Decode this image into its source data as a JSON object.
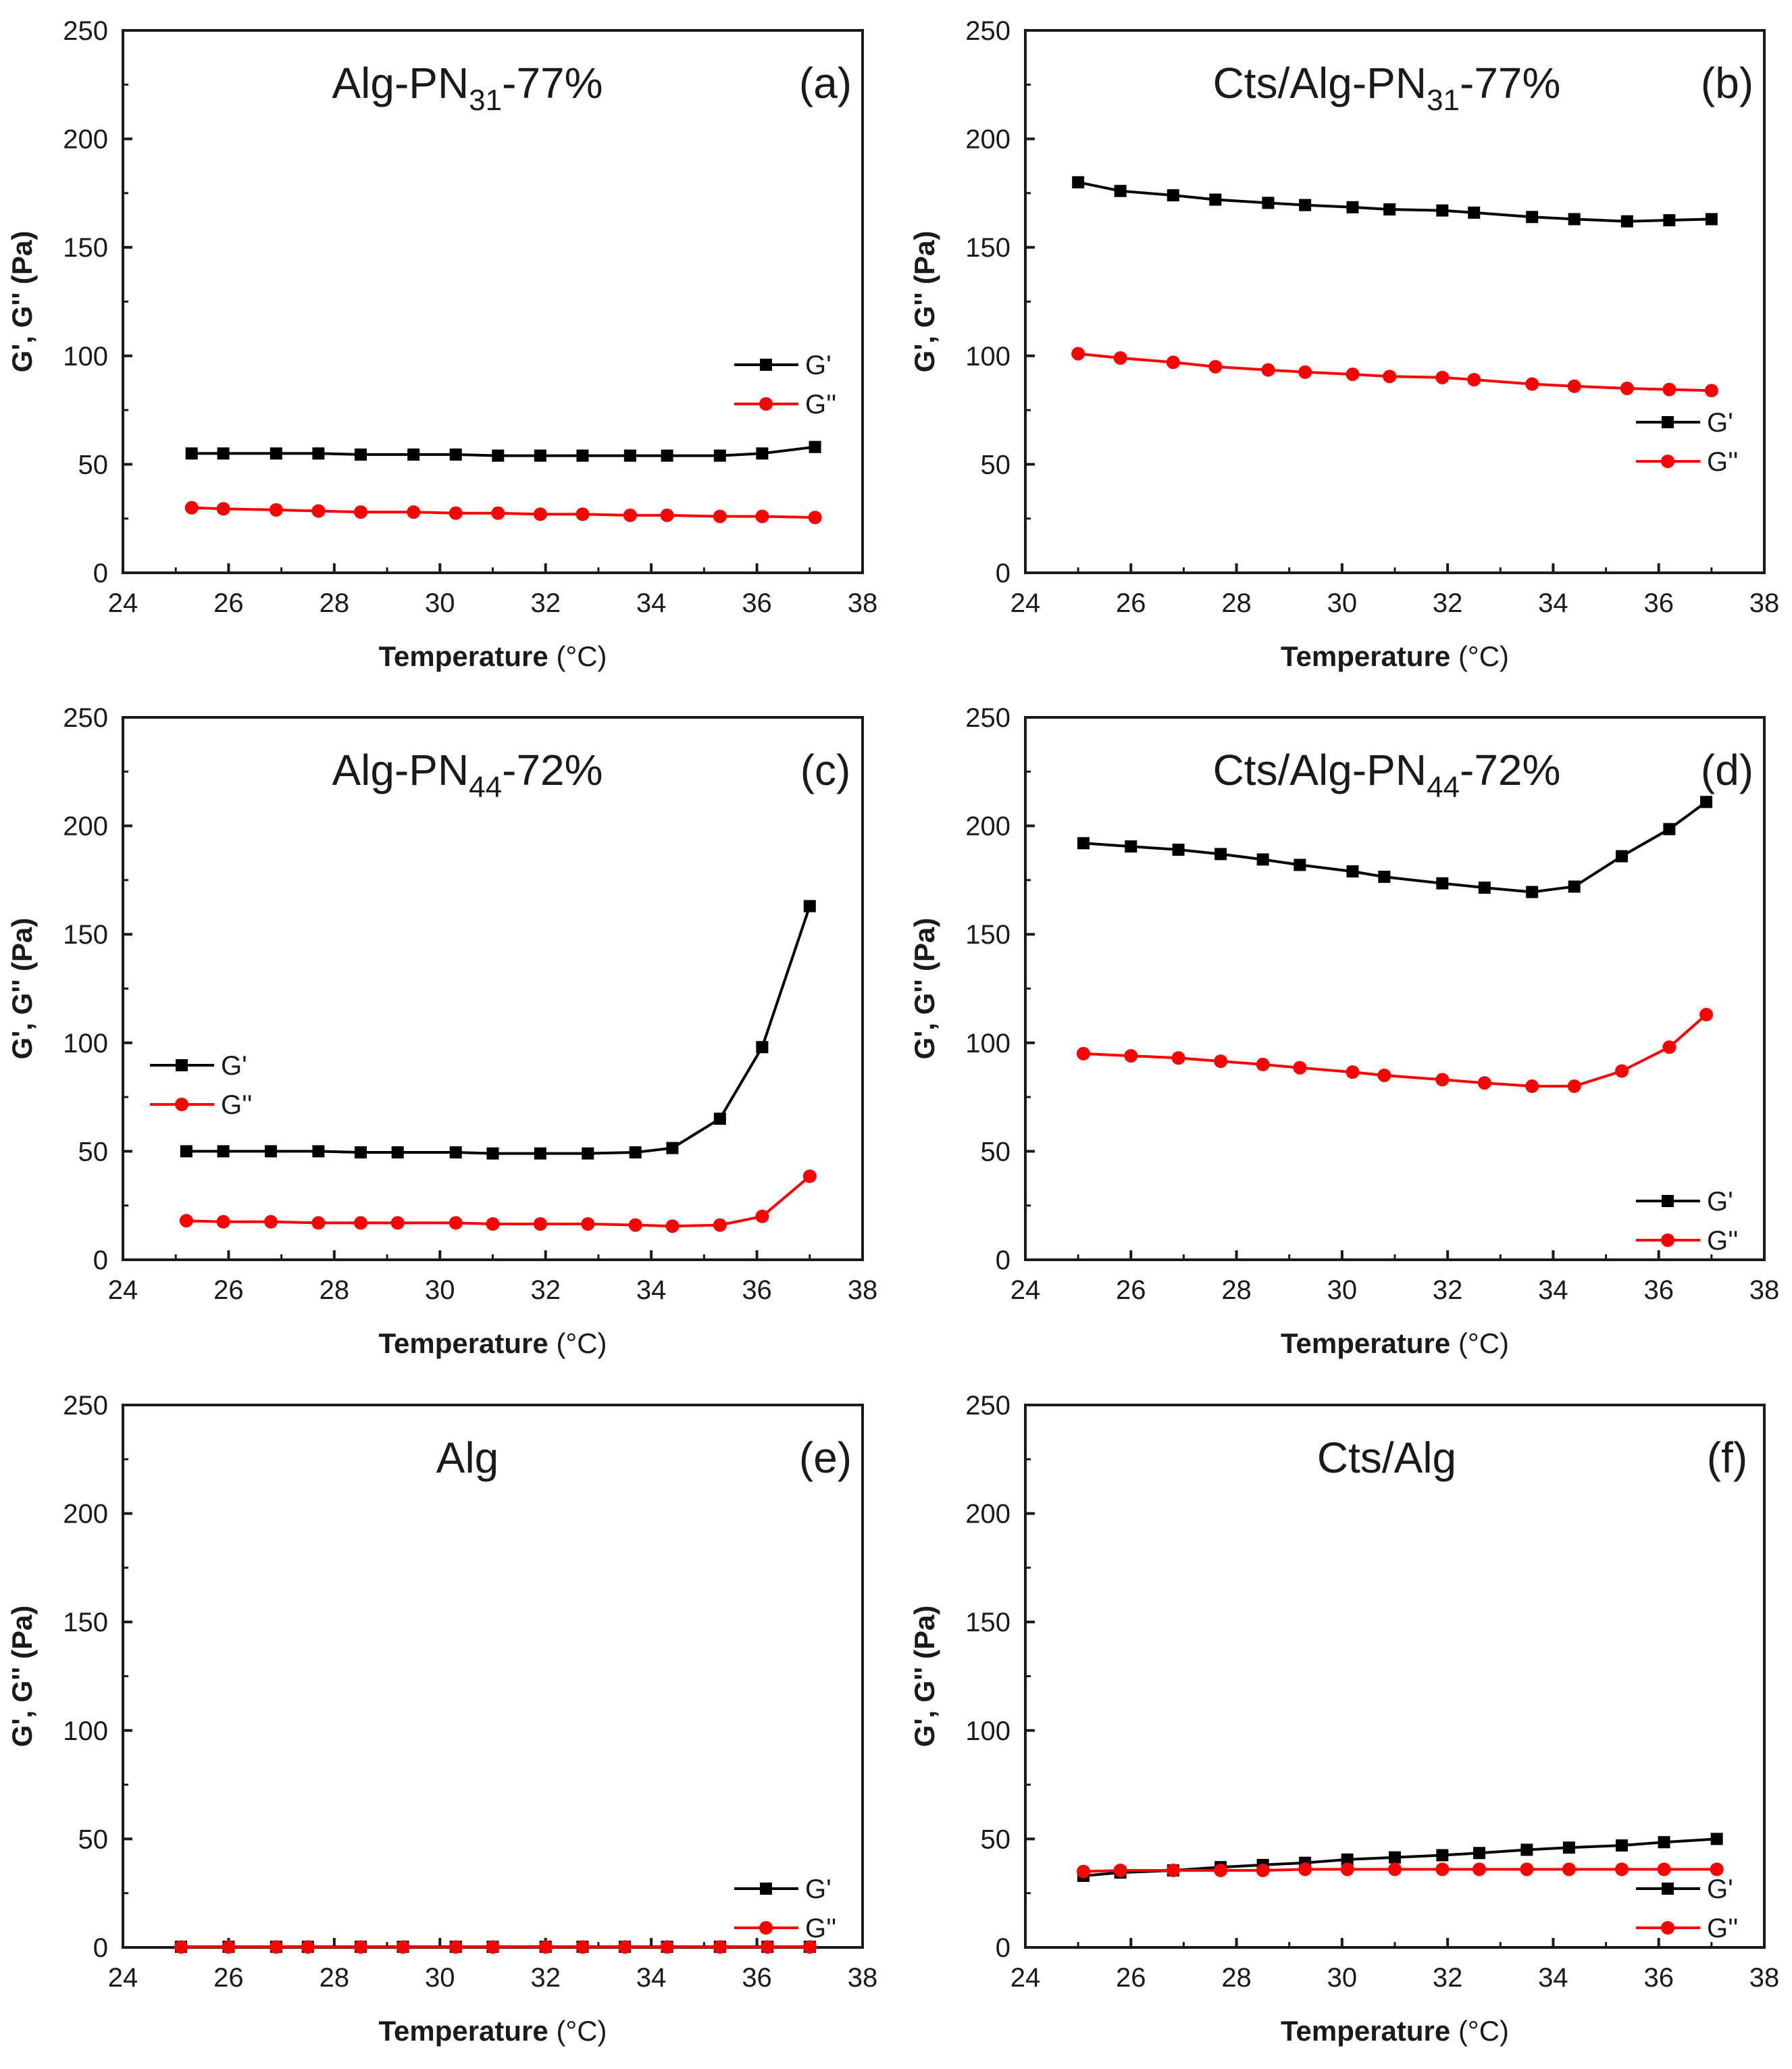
{
  "figure": {
    "background": "#ffffff",
    "axis_color": "#1a1a1a"
  },
  "colors": {
    "g_prime": "#000000",
    "g_double_prime": "#ff0000"
  },
  "chart_data": [
    {
      "id": "a",
      "type": "line",
      "letter": "(a)",
      "title_parts": [
        "Alg-PN",
        "31",
        "-77%"
      ],
      "xlabel": "Temperature",
      "xunit": "(°C)",
      "ylabel": "G', G'' (Pa)",
      "xlim": [
        24,
        38
      ],
      "ylim": [
        0,
        250
      ],
      "xticks": [
        "24",
        "26",
        "28",
        "30",
        "32",
        "34",
        "36",
        "38"
      ],
      "yticks": [
        "0",
        "50",
        "100",
        "150",
        "200",
        "250"
      ],
      "legend": "right-middle",
      "x": [
        25.3,
        25.9,
        26.9,
        27.7,
        28.5,
        29.5,
        30.3,
        31.1,
        31.9,
        32.7,
        33.6,
        34.3,
        35.3,
        36.1,
        37.1
      ],
      "series": [
        {
          "name": "G'",
          "marker": "square",
          "values": [
            55,
            55,
            55,
            55,
            54.5,
            54.5,
            54.5,
            54,
            54,
            54,
            54,
            54,
            54,
            55,
            58
          ]
        },
        {
          "name": "G''",
          "marker": "circle",
          "values": [
            30,
            29.5,
            29,
            28.5,
            28,
            28,
            27.5,
            27.5,
            27,
            27,
            26.5,
            26.5,
            26,
            26,
            25.5
          ]
        }
      ]
    },
    {
      "id": "b",
      "type": "line",
      "letter": "(b)",
      "title_parts": [
        "Cts/Alg-PN",
        "31",
        "-77%"
      ],
      "xlabel": "Temperature",
      "xunit": "(°C)",
      "ylabel": "G', G'' (Pa)",
      "xlim": [
        24,
        38
      ],
      "ylim": [
        0,
        250
      ],
      "xticks": [
        "24",
        "26",
        "28",
        "30",
        "32",
        "34",
        "36",
        "38"
      ],
      "yticks": [
        "0",
        "50",
        "100",
        "150",
        "200",
        "250"
      ],
      "legend": "right-lower",
      "x": [
        25.0,
        25.8,
        26.8,
        27.6,
        28.6,
        29.3,
        30.2,
        30.9,
        31.9,
        32.5,
        33.6,
        34.4,
        35.4,
        36.2,
        37.0
      ],
      "series": [
        {
          "name": "G'",
          "marker": "square",
          "values": [
            180,
            176,
            174,
            172,
            170.5,
            169.5,
            168.5,
            167.5,
            167,
            166,
            164,
            163,
            162,
            162.5,
            163
          ]
        },
        {
          "name": "G''",
          "marker": "circle",
          "values": [
            101,
            99,
            97,
            95,
            93.5,
            92.5,
            91.5,
            90.5,
            90,
            89,
            87,
            86,
            85,
            84.5,
            84
          ]
        }
      ]
    },
    {
      "id": "c",
      "type": "line",
      "letter": "(c)",
      "title_parts": [
        "Alg-PN",
        "44",
        "-72%"
      ],
      "xlabel": "Temperature",
      "xunit": "(°C)",
      "ylabel": "G', G'' (Pa)",
      "xlim": [
        24,
        38
      ],
      "ylim": [
        0,
        250
      ],
      "xticks": [
        "24",
        "26",
        "28",
        "30",
        "32",
        "34",
        "36",
        "38"
      ],
      "yticks": [
        "0",
        "50",
        "100",
        "150",
        "200",
        "250"
      ],
      "legend": "left-middle",
      "x": [
        25.2,
        25.9,
        26.8,
        27.7,
        28.5,
        29.2,
        30.3,
        31.0,
        31.9,
        32.8,
        33.7,
        34.4,
        35.3,
        36.1,
        37.0
      ],
      "series": [
        {
          "name": "G'",
          "marker": "square",
          "values": [
            50,
            50,
            50,
            50,
            49.5,
            49.5,
            49.5,
            49,
            49,
            49,
            49.5,
            51.5,
            65,
            98,
            163
          ]
        },
        {
          "name": "G''",
          "marker": "circle",
          "values": [
            18,
            17.5,
            17.5,
            17,
            17,
            17,
            17,
            16.5,
            16.5,
            16.5,
            16,
            15.5,
            16,
            20,
            38.5
          ]
        }
      ]
    },
    {
      "id": "d",
      "type": "line",
      "letter": "(d)",
      "title_parts": [
        "Cts/Alg-PN",
        "44",
        "-72%"
      ],
      "xlabel": "Temperature",
      "xunit": "(°C)",
      "ylabel": "G', G'' (Pa)",
      "xlim": [
        24,
        38
      ],
      "ylim": [
        0,
        250
      ],
      "xticks": [
        "24",
        "26",
        "28",
        "30",
        "32",
        "34",
        "36",
        "38"
      ],
      "yticks": [
        "0",
        "50",
        "100",
        "150",
        "200",
        "250"
      ],
      "legend": "bottom-right",
      "x": [
        25.1,
        26.0,
        26.9,
        27.7,
        28.5,
        29.2,
        30.2,
        30.8,
        31.9,
        32.7,
        33.6,
        34.4,
        35.3,
        36.2,
        36.9
      ],
      "series": [
        {
          "name": "G'",
          "marker": "square",
          "values": [
            192,
            190.5,
            189,
            187,
            184.5,
            182,
            179,
            176.5,
            173.5,
            171.5,
            169.5,
            172,
            186,
            198.5,
            211
          ]
        },
        {
          "name": "G''",
          "marker": "circle",
          "values": [
            95,
            94,
            93,
            91.5,
            90,
            88.5,
            86.5,
            85,
            83,
            81.5,
            80,
            80,
            87,
            98,
            113
          ]
        }
      ]
    },
    {
      "id": "e",
      "type": "line",
      "letter": "(e)",
      "title_parts": [
        "Alg",
        "",
        ""
      ],
      "xlabel": "Temperature",
      "xunit": "(°C)",
      "ylabel": "G', G'' (Pa)",
      "xlim": [
        24,
        38
      ],
      "ylim": [
        0,
        250
      ],
      "xticks": [
        "24",
        "26",
        "28",
        "30",
        "32",
        "34",
        "36",
        "38"
      ],
      "yticks": [
        "0",
        "50",
        "100",
        "150",
        "200",
        "250"
      ],
      "legend": "bottom-right",
      "x": [
        25.1,
        26.0,
        26.9,
        27.5,
        28.5,
        29.3,
        30.3,
        31.0,
        32.0,
        32.7,
        33.5,
        34.3,
        35.3,
        36.2,
        37.0
      ],
      "series": [
        {
          "name": "G'",
          "marker": "square",
          "values": [
            0.3,
            0.3,
            0.3,
            0.3,
            0.3,
            0.3,
            0.3,
            0.3,
            0.3,
            0.3,
            0.3,
            0.3,
            0.3,
            0.3,
            0.3
          ]
        },
        {
          "name": "G''",
          "marker": "circle",
          "values": [
            0.2,
            0.2,
            0.2,
            0.2,
            0.2,
            0.2,
            0.2,
            0.2,
            0.2,
            0.2,
            0.2,
            0.2,
            0.2,
            0.2,
            0.2
          ]
        }
      ]
    },
    {
      "id": "f",
      "type": "line",
      "letter": "(f)",
      "title_parts": [
        "Cts/Alg",
        "",
        ""
      ],
      "xlabel": "Temperature",
      "xunit": "(°C)",
      "ylabel": "G', G'' (Pa)",
      "xlim": [
        24,
        38
      ],
      "ylim": [
        0,
        250
      ],
      "xticks": [
        "24",
        "26",
        "28",
        "30",
        "32",
        "34",
        "36",
        "38"
      ],
      "yticks": [
        "0",
        "50",
        "100",
        "150",
        "200",
        "250"
      ],
      "legend": "bottom-right",
      "x": [
        25.1,
        25.8,
        26.8,
        27.7,
        28.5,
        29.3,
        30.1,
        31.0,
        31.9,
        32.6,
        33.5,
        34.3,
        35.3,
        36.1,
        37.1
      ],
      "series": [
        {
          "name": "G'",
          "marker": "square",
          "values": [
            33,
            34.5,
            35.5,
            37,
            38,
            39,
            40.5,
            41.5,
            42.5,
            43.5,
            45,
            46,
            47,
            48.5,
            50
          ]
        },
        {
          "name": "G''",
          "marker": "circle",
          "values": [
            35,
            35.5,
            35.5,
            35.5,
            35.5,
            36,
            36,
            36,
            36,
            36,
            36,
            36,
            36,
            36,
            36
          ]
        }
      ]
    }
  ]
}
